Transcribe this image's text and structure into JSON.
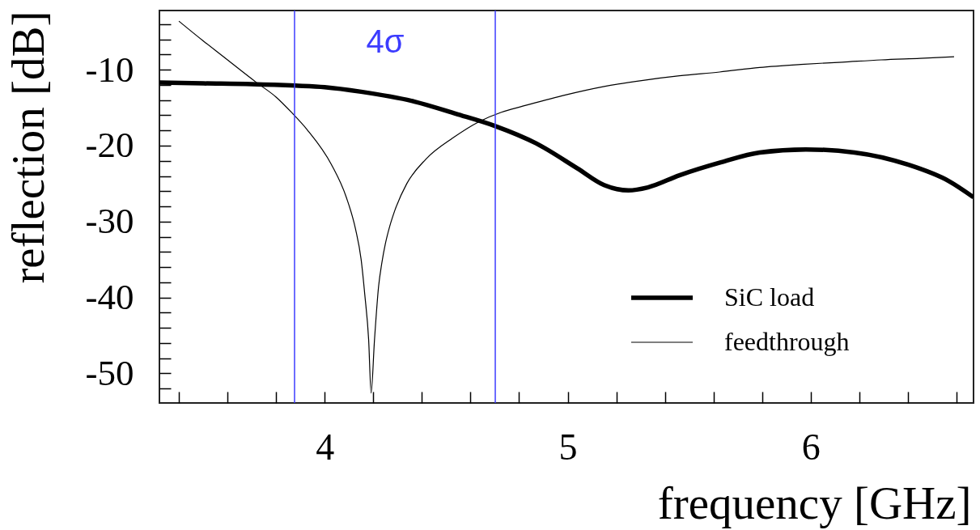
{
  "chart_data": {
    "type": "line",
    "xlabel": "frequency [GHz]",
    "ylabel": "reflection [dB]",
    "series": [
      {
        "name": "SiC load",
        "color": "#000000",
        "x": [
          3.32,
          3.5,
          3.7,
          3.88,
          4.0,
          4.15,
          4.37,
          4.54,
          4.7,
          4.87,
          5.04,
          5.15,
          5.25,
          5.33,
          5.46,
          5.63,
          5.79,
          5.98,
          6.18,
          6.4,
          6.57,
          6.67
        ],
        "values": [
          -11.7,
          -11.8,
          -11.9,
          -12.1,
          -12.3,
          -12.9,
          -14.2,
          -15.8,
          -17.4,
          -19.7,
          -23.0,
          -25.2,
          -25.9,
          -25.5,
          -23.9,
          -22.2,
          -20.9,
          -20.5,
          -20.9,
          -22.5,
          -24.7,
          -26.8
        ]
      },
      {
        "name": "feedthrough",
        "color": "#000000",
        "x": [
          3.4,
          3.5,
          3.58,
          3.72,
          3.8,
          3.863,
          3.928,
          4.028,
          4.089,
          4.127,
          4.15,
          4.165,
          4.181,
          4.191,
          4.205,
          4.222,
          4.235,
          4.25,
          4.268,
          4.288,
          4.338,
          4.416,
          4.527,
          4.638,
          4.727,
          4.815,
          4.98,
          5.15,
          5.31,
          5.46,
          5.625,
          5.79,
          5.96,
          6.13,
          6.29,
          6.45,
          6.59
        ],
        "values": [
          -3.6,
          -6.2,
          -8.2,
          -11.7,
          -13.6,
          -15.6,
          -17.9,
          -22.5,
          -26.8,
          -31.0,
          -35.0,
          -39.6,
          -45.6,
          -52.6,
          -45.6,
          -38.5,
          -35.5,
          -32.9,
          -30.6,
          -28.6,
          -25.0,
          -21.8,
          -19.0,
          -16.8,
          -15.6,
          -14.8,
          -13.4,
          -12.2,
          -11.4,
          -10.8,
          -10.3,
          -9.7,
          -9.3,
          -9.0,
          -8.7,
          -8.5,
          -8.3
        ]
      }
    ],
    "xlim": [
      3.32,
      6.67
    ],
    "ylim": [
      -53.9,
      -2.2
    ],
    "xticks": [
      {
        "value": 3.4,
        "label": null
      },
      {
        "value": 3.6,
        "label": null
      },
      {
        "value": 3.8,
        "label": null
      },
      4,
      {
        "value": 4.2,
        "label": null
      },
      {
        "value": 4.4,
        "label": null
      },
      {
        "value": 4.6,
        "label": null
      },
      {
        "value": 4.8,
        "label": null
      },
      5,
      {
        "value": 5.2,
        "label": null
      },
      {
        "value": 5.4,
        "label": null
      },
      {
        "value": 5.6,
        "label": null
      },
      {
        "value": 5.8,
        "label": null
      },
      6,
      {
        "value": 6.2,
        "label": null
      },
      {
        "value": 6.4,
        "label": null
      },
      {
        "value": 6.6,
        "label": null
      }
    ],
    "yticks": [
      {
        "value": -52,
        "label": null
      },
      -50,
      {
        "value": -48,
        "label": null
      },
      {
        "value": -46,
        "label": null
      },
      {
        "value": -44,
        "label": null
      },
      {
        "value": -42,
        "label": null
      },
      -40,
      {
        "value": -38,
        "label": null
      },
      {
        "value": -36,
        "label": null
      },
      {
        "value": -34,
        "label": null
      },
      {
        "value": -32,
        "label": null
      },
      -30,
      {
        "value": -28,
        "label": null
      },
      {
        "value": -26,
        "label": null
      },
      {
        "value": -24,
        "label": null
      },
      {
        "value": -22,
        "label": null
      },
      -20,
      {
        "value": -18,
        "label": null
      },
      {
        "value": -16,
        "label": null
      },
      {
        "value": -14,
        "label": null
      },
      {
        "value": -12,
        "label": null
      },
      -10,
      {
        "value": -8,
        "label": null
      },
      {
        "value": -6,
        "label": null
      },
      {
        "value": -4,
        "label": null
      }
    ],
    "ref_lines": [
      {
        "axis": "x",
        "value": 3.876,
        "color": "#3c3cff"
      },
      {
        "axis": "x",
        "value": 4.702,
        "color": "#3c3cff"
      }
    ],
    "annotations": [
      "4σ"
    ],
    "legend": "bottom right",
    "grid": false,
    "line_style": "solid",
    "marker": "none"
  }
}
